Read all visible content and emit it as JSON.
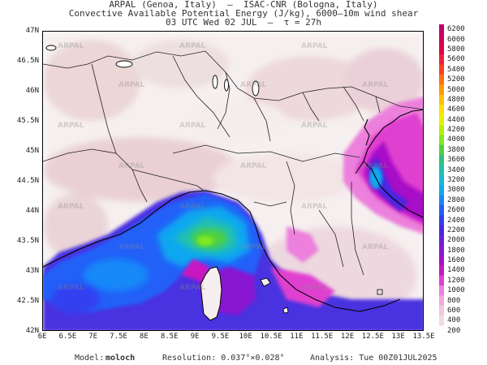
{
  "title": {
    "line1": "ARPAL (Genoa, Italy)  –  ISAC-CNR (Bologna, Italy)",
    "line2": "Convective Available Potential Energy (J/kg), 6000–10m wind shear",
    "line3": "03 UTC Wed 02 JUL  –  τ = 27h"
  },
  "map": {
    "lat_labels": [
      "47N",
      "46.5N",
      "46N",
      "45.5N",
      "45N",
      "44.5N",
      "44N",
      "43.5N",
      "43N",
      "42.5N",
      "42N"
    ],
    "lon_labels": [
      "6E",
      "6.5E",
      "7E",
      "7.5E",
      "8E",
      "8.5E",
      "9E",
      "9.5E",
      "10E",
      "10.5E",
      "11E",
      "11.5E",
      "12E",
      "12.5E",
      "13E",
      "13.5E"
    ],
    "lat_range": [
      42,
      47
    ],
    "lon_range": [
      6,
      13.5
    ],
    "watermark": "ARPAL",
    "land_color": "#ffffff",
    "sea_color": "#ffffff"
  },
  "colorbar": {
    "levels": [
      "6200",
      "6000",
      "5800",
      "5600",
      "5400",
      "5200",
      "5000",
      "4800",
      "4600",
      "4400",
      "4200",
      "4000",
      "3800",
      "3600",
      "3400",
      "3200",
      "3000",
      "2800",
      "2600",
      "2400",
      "2200",
      "2000",
      "1800",
      "1600",
      "1400",
      "1200",
      "1000",
      "800",
      "600",
      "400",
      "200"
    ],
    "colors": [
      "#c2006a",
      "#d0005a",
      "#e0004a",
      "#f0203a",
      "#ff4020",
      "#ff7010",
      "#ff9a00",
      "#ffc000",
      "#ffe000",
      "#e8f000",
      "#b8f000",
      "#80e820",
      "#50d040",
      "#30c080",
      "#20c0b0",
      "#18b8d8",
      "#10a8f0",
      "#1888f8",
      "#2060f8",
      "#3040f0",
      "#4a28e0",
      "#6a20d8",
      "#8818d0",
      "#a810c8",
      "#c818c0",
      "#e040d0",
      "#ec80dc",
      "#f2a8e0",
      "#f2c8dc",
      "#f0dcdc",
      "#ffffff"
    ]
  },
  "footer": {
    "model_label": "Model:",
    "model_value": "moloch",
    "resolution": "Resolution: 0.037°×0.028°",
    "analysis": "Analysis: Tue 00Z01JUL2025"
  }
}
